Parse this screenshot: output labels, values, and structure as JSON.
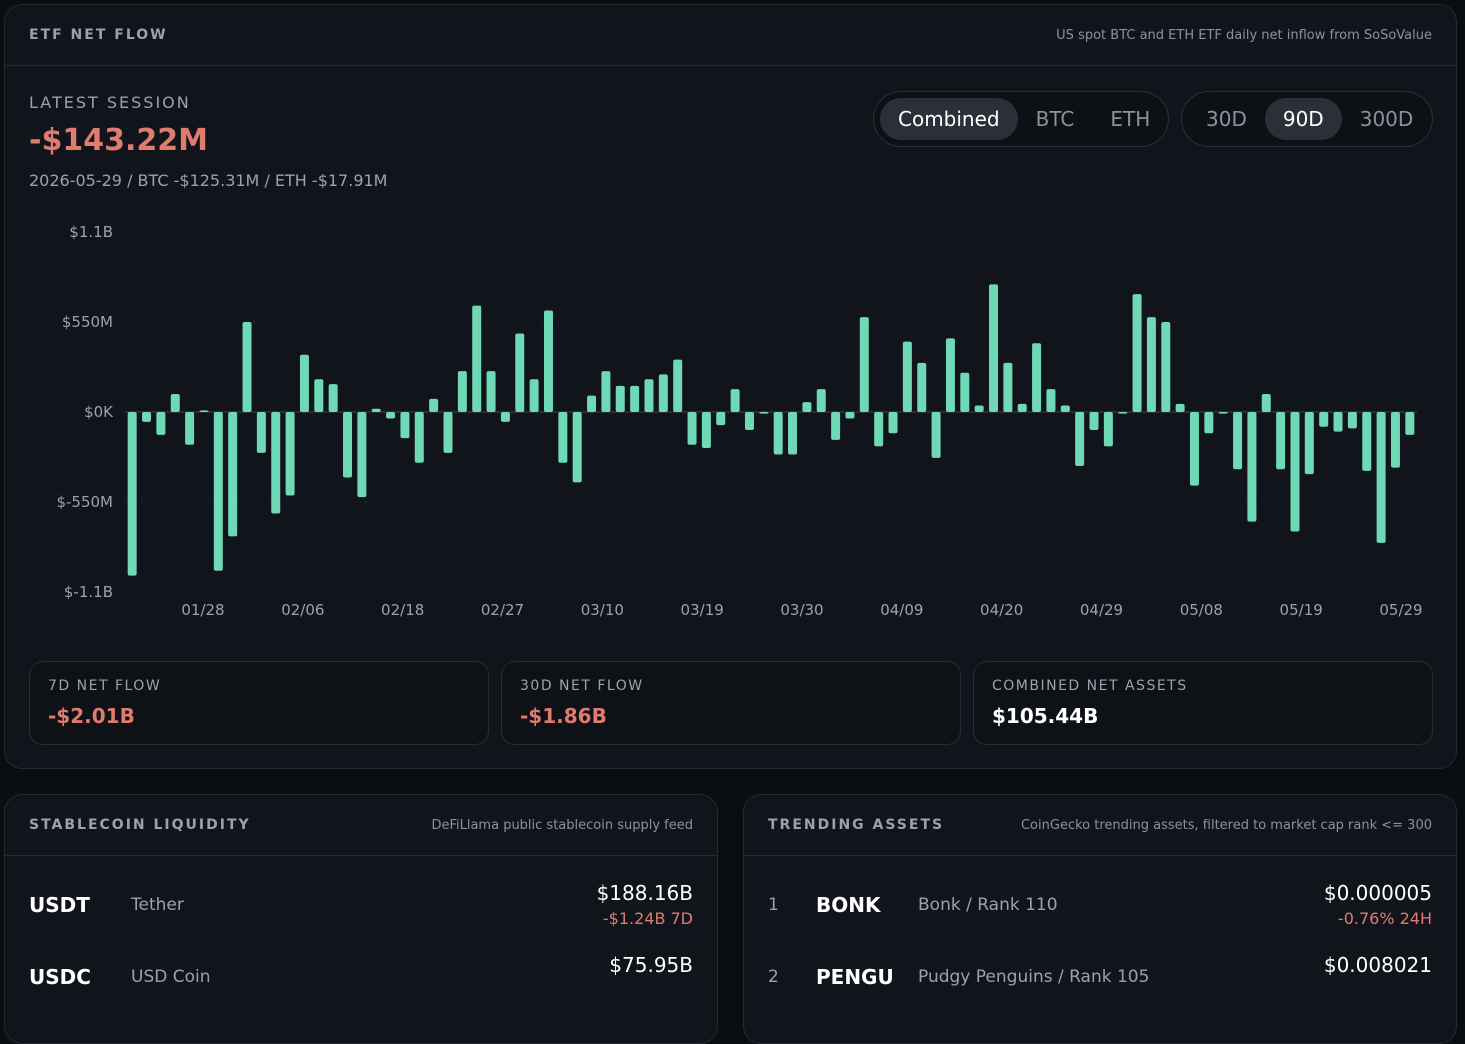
{
  "etf": {
    "title": "ETF NET FLOW",
    "subtitle": "US spot BTC and ETH ETF daily net inflow from SoSoValue",
    "latest_label": "LATEST SESSION",
    "latest_value": "-$143.22M",
    "latest_detail": "2026-05-29 / BTC -$125.31M / ETH -$17.91M",
    "asset_tabs": [
      "Combined",
      "BTC",
      "ETH"
    ],
    "asset_selected": "Combined",
    "range_tabs": [
      "30D",
      "90D",
      "300D"
    ],
    "range_selected": "90D",
    "stats": [
      {
        "label": "7D NET FLOW",
        "value": "-$2.01B"
      },
      {
        "label": "30D NET FLOW",
        "value": "-$1.86B"
      },
      {
        "label": "COMBINED NET ASSETS",
        "value": "$105.44B"
      }
    ]
  },
  "chart_data": {
    "type": "bar",
    "title": "",
    "xlabel": "",
    "ylabel": "",
    "y_ticks": [
      "$1.1B",
      "$550M",
      "$0K",
      "$-550M",
      "$-1.1B"
    ],
    "ylim": [
      -1100,
      1100
    ],
    "unit": "M",
    "x_tick_labels": [
      "01/28",
      "02/06",
      "02/18",
      "02/27",
      "03/10",
      "03/19",
      "03/30",
      "04/09",
      "04/20",
      "04/29",
      "05/08",
      "05/19",
      "05/29"
    ],
    "grid": true,
    "color": "#6fd8b5",
    "values": [
      -1000,
      -60,
      -140,
      110,
      -200,
      10,
      -970,
      -760,
      550,
      -250,
      -620,
      -510,
      350,
      200,
      170,
      -400,
      -520,
      20,
      -40,
      -160,
      -310,
      80,
      -250,
      250,
      650,
      250,
      -60,
      480,
      200,
      620,
      -310,
      -430,
      100,
      250,
      160,
      160,
      200,
      230,
      320,
      -200,
      -220,
      -80,
      140,
      -110,
      -10,
      -260,
      -260,
      60,
      140,
      -170,
      -40,
      580,
      -210,
      -130,
      430,
      300,
      -280,
      450,
      240,
      40,
      780,
      300,
      50,
      420,
      140,
      40,
      -330,
      -110,
      -210,
      -10,
      720,
      580,
      550,
      50,
      -450,
      -130,
      -10,
      -350,
      -670,
      110,
      -350,
      -730,
      -380,
      -90,
      -120,
      -100,
      -360,
      -800,
      -340,
      -140
    ]
  },
  "stablecoin": {
    "title": "STABLECOIN LIQUIDITY",
    "subtitle": "DeFiLlama public stablecoin supply feed",
    "rows": [
      {
        "symbol": "USDT",
        "name": "Tether",
        "value": "$188.16B",
        "change": "-$1.24B 7D"
      },
      {
        "symbol": "USDC",
        "name": "USD Coin",
        "value": "$75.95B",
        "change": ""
      }
    ]
  },
  "trending": {
    "title": "TRENDING ASSETS",
    "subtitle": "CoinGecko trending assets, filtered to market cap rank <= 300",
    "rows": [
      {
        "rank": "1",
        "symbol": "BONK",
        "name": "Bonk / Rank 110",
        "value": "$0.000005",
        "change": "-0.76% 24H"
      },
      {
        "rank": "2",
        "symbol": "PENGU",
        "name": "Pudgy Penguins / Rank 105",
        "value": "$0.008021",
        "change": ""
      }
    ]
  }
}
